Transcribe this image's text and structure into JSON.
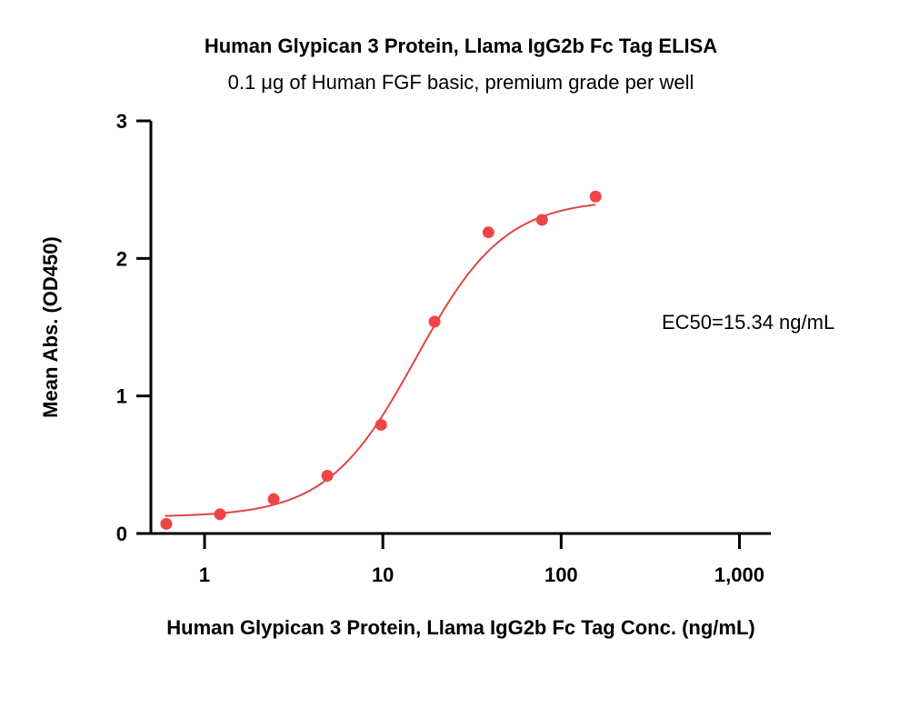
{
  "chart_data": {
    "type": "scatter",
    "title": "Human Glypican 3 Protein, Llama IgG2b Fc Tag ELISA",
    "subtitle": "0.1 μg of Human FGF basic, premium grade per well",
    "xlabel": "Human Glypican 3 Protein, Llama IgG2b Fc Tag Conc. (ng/mL)",
    "ylabel": "Mean Abs. (OD450)",
    "xscale": "log",
    "xlim": [
      0.5,
      1500
    ],
    "ylim": [
      0,
      3
    ],
    "xticks": [
      1,
      10,
      100,
      1000
    ],
    "xtick_labels": [
      "1",
      "10",
      "100",
      "1,000"
    ],
    "yticks": [
      0,
      1,
      2,
      3
    ],
    "ytick_labels": [
      "0",
      "1",
      "2",
      "3"
    ],
    "grid": false,
    "series": [
      {
        "x": [
          0.61,
          1.22,
          2.44,
          4.88,
          9.77,
          19.5,
          39.1,
          78.1,
          156
        ],
        "y": [
          0.07,
          0.14,
          0.25,
          0.42,
          0.79,
          1.54,
          2.19,
          2.28,
          2.45
        ],
        "color": "#ee4444"
      }
    ],
    "fit": {
      "model": "4PL",
      "bottom": 0.12,
      "top": 2.43,
      "ec50": 15.34,
      "hill": 1.75,
      "x_range": [
        0.6,
        156
      ],
      "color": "#e04545"
    },
    "annotations": [
      {
        "text": "EC50=15.34 ng/mL"
      }
    ]
  }
}
